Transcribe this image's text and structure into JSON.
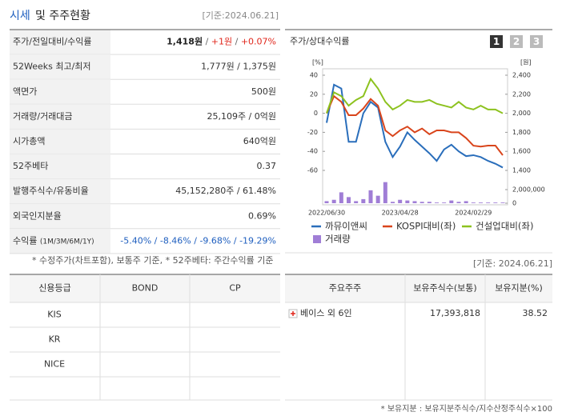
{
  "header": {
    "title_highlight": "시세",
    "title_rest": "및 주주현황",
    "date": "[기준:2024.06.21]"
  },
  "quote": {
    "rows": [
      {
        "label": "주가/전일대비/수익률",
        "parts": [
          {
            "text": "1,418원",
            "style": "bold"
          },
          {
            "text": " / ",
            "style": "sep"
          },
          {
            "text": "+1원",
            "style": "up"
          },
          {
            "text": " / ",
            "style": "sep"
          },
          {
            "text": "+0.07%",
            "style": "up"
          }
        ]
      },
      {
        "label": "52Weeks 최고/최저",
        "parts": [
          {
            "text": "1,777원 / 1,375원",
            "style": "plain"
          }
        ]
      },
      {
        "label": "액면가",
        "parts": [
          {
            "text": "500원",
            "style": "plain"
          }
        ]
      },
      {
        "label": "거래량/거래대금",
        "parts": [
          {
            "text": "25,109주 / 0억원",
            "style": "plain"
          }
        ]
      },
      {
        "label": "시가총액",
        "parts": [
          {
            "text": "640억원",
            "style": "plain"
          }
        ]
      },
      {
        "label": "52주베타",
        "parts": [
          {
            "text": "0.37",
            "style": "plain"
          }
        ]
      },
      {
        "label": "발행주식수/유동비율",
        "parts": [
          {
            "text": "45,152,280주 / 61.48%",
            "style": "plain"
          }
        ]
      },
      {
        "label": "외국인지분율",
        "parts": [
          {
            "text": "0.69%",
            "style": "plain"
          }
        ]
      },
      {
        "label": "수익률",
        "label_note": "(1M/3M/6M/1Y)",
        "parts": [
          {
            "text": "-5.40% / -8.46% / -9.68% / -19.29%",
            "style": "down"
          }
        ]
      }
    ],
    "note": "* 수정주가(차트포함), 보통주 기준, * 52주베타: 주간수익률 기준"
  },
  "chart_data": {
    "type": "line",
    "title": "주가/상대수익률",
    "tabs": [
      "1",
      "2",
      "3"
    ],
    "active_tab": 0,
    "ylabel": "[%]",
    "y2label": "[원]",
    "categories": [
      "2022/06/30",
      null,
      null,
      null,
      null,
      null,
      null,
      null,
      null,
      null,
      "2023/04/28",
      null,
      null,
      null,
      null,
      null,
      null,
      null,
      null,
      null,
      "2024/02/29",
      null,
      null,
      null,
      null
    ],
    "series": [
      {
        "name": "까뮤이앤씨",
        "color": "#2a6ebb",
        "axis": "y2",
        "values": [
          1900,
          2300,
          2260,
          1700,
          1700,
          2000,
          2120,
          2060,
          1700,
          1540,
          1650,
          1800,
          1720,
          1650,
          1580,
          1500,
          1620,
          1670,
          1600,
          1550,
          1560,
          1540,
          1500,
          1470,
          1430
        ]
      },
      {
        "name": "KOSPI대비(좌)",
        "color": "#d9451c",
        "values": [
          0,
          18,
          12,
          -2,
          -2,
          5,
          15,
          8,
          -18,
          -24,
          -18,
          -14,
          -20,
          -16,
          -22,
          -18,
          -18,
          -20,
          -20,
          -26,
          -34,
          -35,
          -34,
          -34,
          -44
        ]
      },
      {
        "name": "건설업대비(좌)",
        "color": "#8dc21f",
        "values": [
          0,
          22,
          18,
          8,
          14,
          18,
          36,
          26,
          12,
          4,
          8,
          14,
          12,
          12,
          14,
          10,
          8,
          6,
          12,
          6,
          4,
          8,
          4,
          4,
          0
        ]
      },
      {
        "name": "거래량",
        "color": "#a07ed6",
        "type": "bar",
        "axis": "volume",
        "values": [
          300000,
          500000,
          1600000,
          900000,
          300000,
          600000,
          1900000,
          1100000,
          3100000,
          200000,
          500000,
          400000,
          300000,
          200000,
          200000,
          100000,
          100000,
          400000,
          200000,
          300000,
          100000,
          100000,
          100000,
          100000,
          100000
        ]
      }
    ],
    "ylim": [
      -60,
      40
    ],
    "yticks": [
      40,
      20,
      0,
      -20,
      -40,
      -60
    ],
    "y2lim": [
      1400,
      2400
    ],
    "y2ticks": [
      {
        "value": 2400,
        "label": "2,400"
      },
      {
        "value": 2200,
        "label": "2,200"
      },
      {
        "value": 2000,
        "label": "2,000"
      },
      {
        "value": 1800,
        "label": "1,800"
      },
      {
        "value": 1600,
        "label": "1,600"
      },
      {
        "value": 1400,
        "label": "1,400"
      }
    ],
    "vlim": [
      0,
      2000000
    ],
    "vticks": [
      {
        "value": 2000000,
        "label": "2,000,000"
      },
      0
    ]
  },
  "credit": {
    "headers": [
      "신용등급",
      "BOND",
      "CP"
    ],
    "rows": [
      {
        "agency": "KIS"
      },
      {
        "agency": "KR"
      },
      {
        "agency": "NICE"
      }
    ]
  },
  "holders": {
    "date": "[기준: 2024.06.21]",
    "headers": [
      "주요주주",
      "보유주식수(보통)",
      "보유지분(%)"
    ],
    "rows": [
      [
        "베이스 외 6인",
        "17,393,818",
        "38.52"
      ]
    ],
    "note": "* 보유지분 : 보유지분주식수/지수산정주식수×100"
  }
}
